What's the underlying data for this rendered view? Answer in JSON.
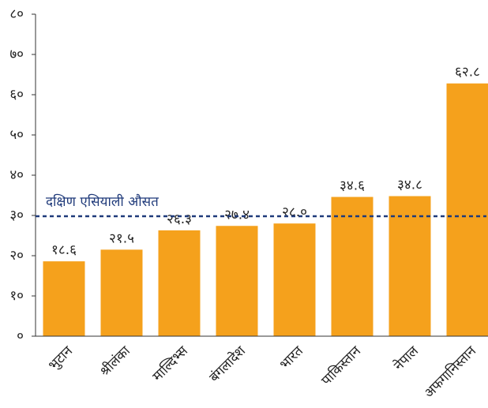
{
  "chart_data": {
    "type": "bar",
    "categories": [
      "भुटान",
      "श्रीलंका",
      "माल्दिभ्स",
      "बंगलादेश",
      "भारत",
      "पाकिस्तान",
      "नेपाल",
      "अफगानिस्तान"
    ],
    "values": [
      18.6,
      21.5,
      26.3,
      27.4,
      28.0,
      34.6,
      34.8,
      62.8
    ],
    "value_labels": [
      "१८.६",
      "२१.५",
      "२६.३",
      "२७.४",
      "२८.०",
      "३४.६",
      "३४.८",
      "६२.८"
    ],
    "color": "#f5a11c",
    "ylim": [
      0,
      80
    ],
    "yticks": [
      {
        "value": 0,
        "label": "०"
      },
      {
        "value": 10,
        "label": "१०"
      },
      {
        "value": 20,
        "label": "२०"
      },
      {
        "value": 30,
        "label": "३०"
      },
      {
        "value": 40,
        "label": "४०"
      },
      {
        "value": 50,
        "label": "५०"
      },
      {
        "value": 60,
        "label": "६०"
      },
      {
        "value": 70,
        "label": "७०"
      },
      {
        "value": 80,
        "label": "८०"
      }
    ],
    "reference_line": {
      "label": "दक्षिण एसियाली औसत",
      "value": 29.8,
      "color": "#1f3a7a"
    }
  }
}
